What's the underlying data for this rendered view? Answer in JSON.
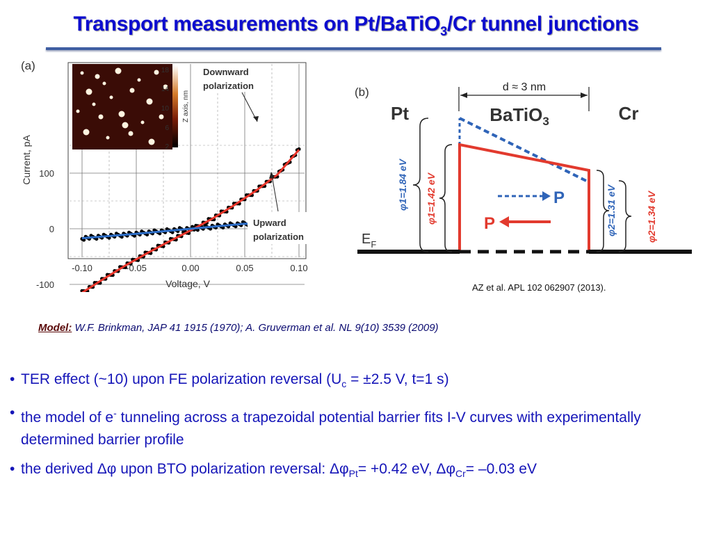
{
  "slide": {
    "title_prefix": "Transport measurements on Pt/BaTiO",
    "title_sub": "3",
    "title_suffix": "/Cr tunnel junctions"
  },
  "figure_a": {
    "panel_label": "(a)",
    "ylabel": "Current, pA",
    "xlabel": "Voltage, V",
    "y_ticks": [
      "100",
      "0",
      "-100"
    ],
    "x_ticks": [
      "-0.10",
      "-0.05",
      "0.00",
      "0.05",
      "0.10"
    ],
    "colorbar_ticks": [
      "18",
      "14",
      "10",
      "6",
      "2"
    ],
    "colorbar_label": "Z axis, nm",
    "annotation_downward": [
      "Downward",
      "polarization"
    ],
    "annotation_upward": [
      "Upward",
      "polarization"
    ],
    "colors": {
      "downward_curve": "#e8352a",
      "upward_curve": "#2e6fc9",
      "data_points": "#000000"
    }
  },
  "chart_data": {
    "type": "line",
    "title": "",
    "xlabel": "Voltage, V",
    "ylabel": "Current, pA",
    "xlim": [
      -0.11,
      0.11
    ],
    "ylim": [
      -150,
      160
    ],
    "grid": true,
    "series": [
      {
        "name": "Downward polarization",
        "x": [
          -0.1,
          -0.08,
          -0.06,
          -0.04,
          -0.02,
          0.0,
          0.02,
          0.04,
          0.06,
          0.08,
          0.1
        ],
        "y": [
          -115,
          -90,
          -66,
          -44,
          -23,
          -3,
          18,
          42,
          68,
          97,
          142
        ]
      },
      {
        "name": "Upward polarization",
        "x": [
          -0.1,
          -0.05,
          0.0,
          0.05,
          0.1
        ],
        "y": [
          -17,
          -9,
          0,
          9,
          8
        ]
      }
    ]
  },
  "figure_b": {
    "panel_label": "(b)",
    "thickness_label": "d ≈ 3 nm",
    "pt_label": "Pt",
    "bto_label": "BaTiO",
    "bto_sub": "3",
    "cr_label": "Cr",
    "phi1_blue": "φ1=1.84 eV",
    "phi1_red": "φ1=1.42 eV",
    "phi2_blue": "φ2=1.31 eV",
    "phi2_red": "φ2=1.34 eV",
    "p_label": "P",
    "fermi_label": "E",
    "fermi_sub": "F"
  },
  "citation": "AZ et al. APL 102 062907 (2013).",
  "model": {
    "label": "Model:",
    "text": " W.F. Brinkman, JAP 41 1915 (1970); A. Gruverman et al. NL 9(10) 3539 (2009)"
  },
  "bullets": {
    "b1_pre": "TER effect (~10) upon FE polarization reversal (U",
    "b1_sub": "c",
    "b1_post": " = ±2.5 V, t=1 s)",
    "b2_pre": "the model of e",
    "b2_sup": "-",
    "b2_post": " tunneling across a trapezoidal potential barrier fits I-V curves with experimentally  determined barrier profile",
    "b3_pre": "the derived Δφ upon BTO polarization reversal:  Δφ",
    "b3_sub1": "Pt",
    "b3_mid": "= +0.42 eV,  Δφ",
    "b3_sub2": "Cr",
    "b3_post": "= –0.03 eV"
  }
}
